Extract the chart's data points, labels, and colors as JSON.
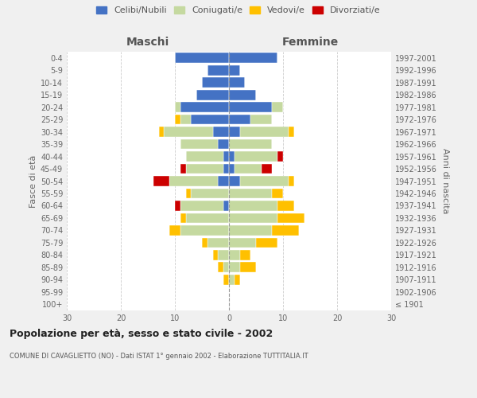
{
  "age_groups": [
    "100+",
    "95-99",
    "90-94",
    "85-89",
    "80-84",
    "75-79",
    "70-74",
    "65-69",
    "60-64",
    "55-59",
    "50-54",
    "45-49",
    "40-44",
    "35-39",
    "30-34",
    "25-29",
    "20-24",
    "15-19",
    "10-14",
    "5-9",
    "0-4"
  ],
  "birth_years": [
    "≤ 1901",
    "1902-1906",
    "1907-1911",
    "1912-1916",
    "1917-1921",
    "1922-1926",
    "1927-1931",
    "1932-1936",
    "1937-1941",
    "1942-1946",
    "1947-1951",
    "1952-1956",
    "1957-1961",
    "1962-1966",
    "1967-1971",
    "1972-1976",
    "1977-1981",
    "1982-1986",
    "1987-1991",
    "1992-1996",
    "1997-2001"
  ],
  "colors": {
    "celibi": "#4472c4",
    "coniugati": "#c5d9a0",
    "vedovi": "#ffc000",
    "divorziati": "#cc0000"
  },
  "maschi": {
    "celibi": [
      0,
      0,
      0,
      0,
      0,
      0,
      0,
      0,
      1,
      0,
      2,
      1,
      1,
      2,
      3,
      7,
      9,
      6,
      5,
      4,
      10
    ],
    "coniugati": [
      0,
      0,
      0,
      1,
      2,
      4,
      9,
      8,
      8,
      7,
      9,
      7,
      7,
      7,
      9,
      2,
      1,
      0,
      0,
      0,
      0
    ],
    "vedovi": [
      0,
      0,
      1,
      1,
      1,
      1,
      2,
      1,
      0,
      1,
      0,
      0,
      0,
      0,
      1,
      1,
      0,
      0,
      0,
      0,
      0
    ],
    "divorziati": [
      0,
      0,
      0,
      0,
      0,
      0,
      0,
      0,
      1,
      0,
      3,
      1,
      0,
      0,
      0,
      0,
      0,
      0,
      0,
      0,
      0
    ]
  },
  "femmine": {
    "nubili": [
      0,
      0,
      0,
      0,
      0,
      0,
      0,
      0,
      0,
      0,
      2,
      1,
      1,
      0,
      2,
      4,
      8,
      5,
      3,
      2,
      9
    ],
    "coniugate": [
      0,
      0,
      1,
      2,
      2,
      5,
      8,
      9,
      9,
      8,
      9,
      5,
      8,
      8,
      9,
      4,
      2,
      0,
      0,
      0,
      0
    ],
    "vedove": [
      0,
      0,
      1,
      3,
      2,
      4,
      5,
      5,
      3,
      2,
      1,
      0,
      0,
      0,
      1,
      0,
      0,
      0,
      0,
      0,
      0
    ],
    "divorziate": [
      0,
      0,
      0,
      0,
      0,
      0,
      0,
      0,
      0,
      0,
      0,
      2,
      1,
      0,
      0,
      0,
      0,
      0,
      0,
      0,
      0
    ]
  },
  "title": "Popolazione per età, sesso e stato civile - 2002",
  "subtitle": "COMUNE DI CAVAGLIETTO (NO) - Dati ISTAT 1° gennaio 2002 - Elaborazione TUTTITALIA.IT",
  "xlabel_maschi": "Maschi",
  "xlabel_femmine": "Femmine",
  "ylabel": "Fasce di età",
  "ylabel_right": "Anni di nascita",
  "xlim": 30,
  "legend_labels": [
    "Celibi/Nubili",
    "Coniugati/e",
    "Vedovi/e",
    "Divorziati/e"
  ],
  "background_color": "#f0f0f0",
  "plot_bg_color": "#ffffff"
}
